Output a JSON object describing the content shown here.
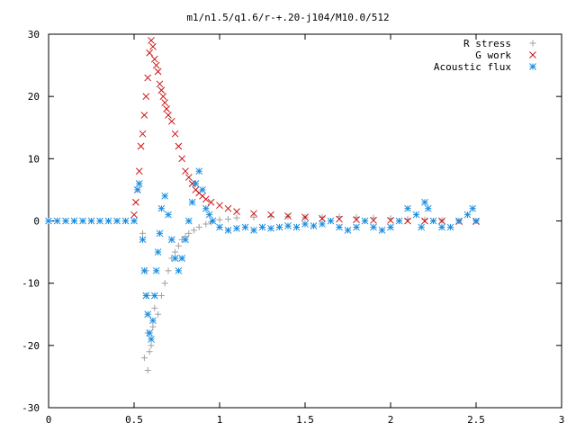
{
  "chart_data": {
    "type": "scatter",
    "title": "m1/n1.5/q1.6/r-+.20-j104/M10.0/512",
    "xlabel": "",
    "ylabel": "",
    "xlim": [
      0,
      3
    ],
    "ylim": [
      -30,
      30
    ],
    "x_ticks": [
      "0",
      "0.5",
      "1",
      "1.5",
      "2",
      "2.5",
      "3"
    ],
    "y_ticks": [
      "30",
      "20",
      "10",
      "0",
      "-10",
      "-20",
      "-30"
    ],
    "grid": false,
    "legend_position": "top-right",
    "series": [
      {
        "name": "R stress",
        "marker": "plus",
        "color": "#a0a0a0",
        "points": [
          [
            0.55,
            -2
          ],
          [
            0.57,
            -8
          ],
          [
            0.58,
            -12
          ],
          [
            0.58,
            -18
          ],
          [
            0.56,
            -22
          ],
          [
            0.58,
            -24
          ],
          [
            0.59,
            -21
          ],
          [
            0.6,
            -20
          ],
          [
            0.61,
            -17
          ],
          [
            0.62,
            -14
          ],
          [
            0.64,
            -15
          ],
          [
            0.66,
            -12
          ],
          [
            0.68,
            -10
          ],
          [
            0.7,
            -8
          ],
          [
            0.72,
            -6
          ],
          [
            0.74,
            -5
          ],
          [
            0.76,
            -4
          ],
          [
            0.78,
            -3
          ],
          [
            0.8,
            -2.5
          ],
          [
            0.82,
            -2
          ],
          [
            0.85,
            -1.5
          ],
          [
            0.88,
            -1
          ],
          [
            0.92,
            -0.5
          ],
          [
            0.95,
            -0.2
          ],
          [
            1.0,
            0.2
          ],
          [
            1.05,
            0.3
          ],
          [
            1.1,
            0.5
          ],
          [
            1.2,
            0.6
          ],
          [
            1.3,
            0.7
          ],
          [
            1.4,
            0.7
          ],
          [
            1.5,
            0.6
          ],
          [
            1.6,
            0.6
          ],
          [
            1.7,
            0.7
          ],
          [
            1.8,
            0.6
          ],
          [
            1.9,
            0.5
          ],
          [
            2.0,
            0.4
          ],
          [
            2.1,
            0.3
          ],
          [
            2.2,
            0.2
          ],
          [
            2.3,
            0.1
          ],
          [
            2.4,
            0.0
          ],
          [
            2.5,
            0.0
          ]
        ]
      },
      {
        "name": "G work",
        "marker": "cross",
        "color": "#cc1111",
        "points": [
          [
            0.5,
            1
          ],
          [
            0.51,
            3
          ],
          [
            0.52,
            5
          ],
          [
            0.53,
            8
          ],
          [
            0.54,
            12
          ],
          [
            0.55,
            14
          ],
          [
            0.56,
            17
          ],
          [
            0.57,
            20
          ],
          [
            0.58,
            23
          ],
          [
            0.59,
            27
          ],
          [
            0.6,
            29
          ],
          [
            0.61,
            28
          ],
          [
            0.62,
            26
          ],
          [
            0.63,
            25
          ],
          [
            0.64,
            24
          ],
          [
            0.65,
            22
          ],
          [
            0.66,
            21
          ],
          [
            0.67,
            20
          ],
          [
            0.68,
            19
          ],
          [
            0.69,
            18
          ],
          [
            0.7,
            17
          ],
          [
            0.72,
            16
          ],
          [
            0.74,
            14
          ],
          [
            0.76,
            12
          ],
          [
            0.78,
            10
          ],
          [
            0.8,
            8
          ],
          [
            0.82,
            7
          ],
          [
            0.84,
            6
          ],
          [
            0.86,
            5
          ],
          [
            0.88,
            4.5
          ],
          [
            0.9,
            4
          ],
          [
            0.92,
            3.5
          ],
          [
            0.95,
            3
          ],
          [
            1.0,
            2.5
          ],
          [
            1.05,
            2
          ],
          [
            1.1,
            1.5
          ],
          [
            1.2,
            1.2
          ],
          [
            1.3,
            1.0
          ],
          [
            1.4,
            0.8
          ],
          [
            1.5,
            0.6
          ],
          [
            1.6,
            0.4
          ],
          [
            1.7,
            0.3
          ],
          [
            1.8,
            0.2
          ],
          [
            1.9,
            0.1
          ],
          [
            2.0,
            0.1
          ],
          [
            2.1,
            0.0
          ],
          [
            2.2,
            0.0
          ],
          [
            2.3,
            0.0
          ],
          [
            2.4,
            -0.1
          ],
          [
            2.5,
            -0.1
          ]
        ]
      },
      {
        "name": "Acoustic flux",
        "marker": "star",
        "color": "#1a8ee0",
        "points": [
          [
            0.0,
            0
          ],
          [
            0.05,
            0
          ],
          [
            0.1,
            0
          ],
          [
            0.15,
            0
          ],
          [
            0.2,
            0
          ],
          [
            0.25,
            0
          ],
          [
            0.3,
            0
          ],
          [
            0.35,
            0
          ],
          [
            0.4,
            0
          ],
          [
            0.45,
            0
          ],
          [
            0.5,
            0
          ],
          [
            0.52,
            5
          ],
          [
            0.53,
            6
          ],
          [
            0.55,
            -3
          ],
          [
            0.56,
            -8
          ],
          [
            0.57,
            -12
          ],
          [
            0.58,
            -15
          ],
          [
            0.59,
            -18
          ],
          [
            0.6,
            -19
          ],
          [
            0.61,
            -16
          ],
          [
            0.62,
            -12
          ],
          [
            0.63,
            -8
          ],
          [
            0.64,
            -5
          ],
          [
            0.65,
            -2
          ],
          [
            0.66,
            2
          ],
          [
            0.68,
            4
          ],
          [
            0.7,
            1
          ],
          [
            0.72,
            -3
          ],
          [
            0.74,
            -6
          ],
          [
            0.76,
            -8
          ],
          [
            0.78,
            -6
          ],
          [
            0.8,
            -3
          ],
          [
            0.82,
            0
          ],
          [
            0.84,
            3
          ],
          [
            0.86,
            6
          ],
          [
            0.88,
            8
          ],
          [
            0.9,
            5
          ],
          [
            0.92,
            2
          ],
          [
            0.94,
            1
          ],
          [
            0.96,
            0
          ],
          [
            1.0,
            -1
          ],
          [
            1.05,
            -1.5
          ],
          [
            1.1,
            -1.2
          ],
          [
            1.15,
            -1
          ],
          [
            1.2,
            -1.5
          ],
          [
            1.25,
            -1
          ],
          [
            1.3,
            -1.2
          ],
          [
            1.35,
            -1
          ],
          [
            1.4,
            -0.8
          ],
          [
            1.45,
            -1
          ],
          [
            1.5,
            -0.5
          ],
          [
            1.55,
            -0.8
          ],
          [
            1.6,
            -0.5
          ],
          [
            1.65,
            0
          ],
          [
            1.7,
            -1
          ],
          [
            1.75,
            -1.5
          ],
          [
            1.8,
            -1
          ],
          [
            1.85,
            0
          ],
          [
            1.9,
            -1
          ],
          [
            1.95,
            -1.5
          ],
          [
            2.0,
            -1
          ],
          [
            2.05,
            0
          ],
          [
            2.1,
            2
          ],
          [
            2.15,
            1
          ],
          [
            2.18,
            -1
          ],
          [
            2.2,
            3
          ],
          [
            2.22,
            2
          ],
          [
            2.25,
            0
          ],
          [
            2.3,
            -1
          ],
          [
            2.35,
            -1
          ],
          [
            2.4,
            0
          ],
          [
            2.45,
            1
          ],
          [
            2.48,
            2
          ],
          [
            2.5,
            0
          ]
        ]
      }
    ]
  }
}
